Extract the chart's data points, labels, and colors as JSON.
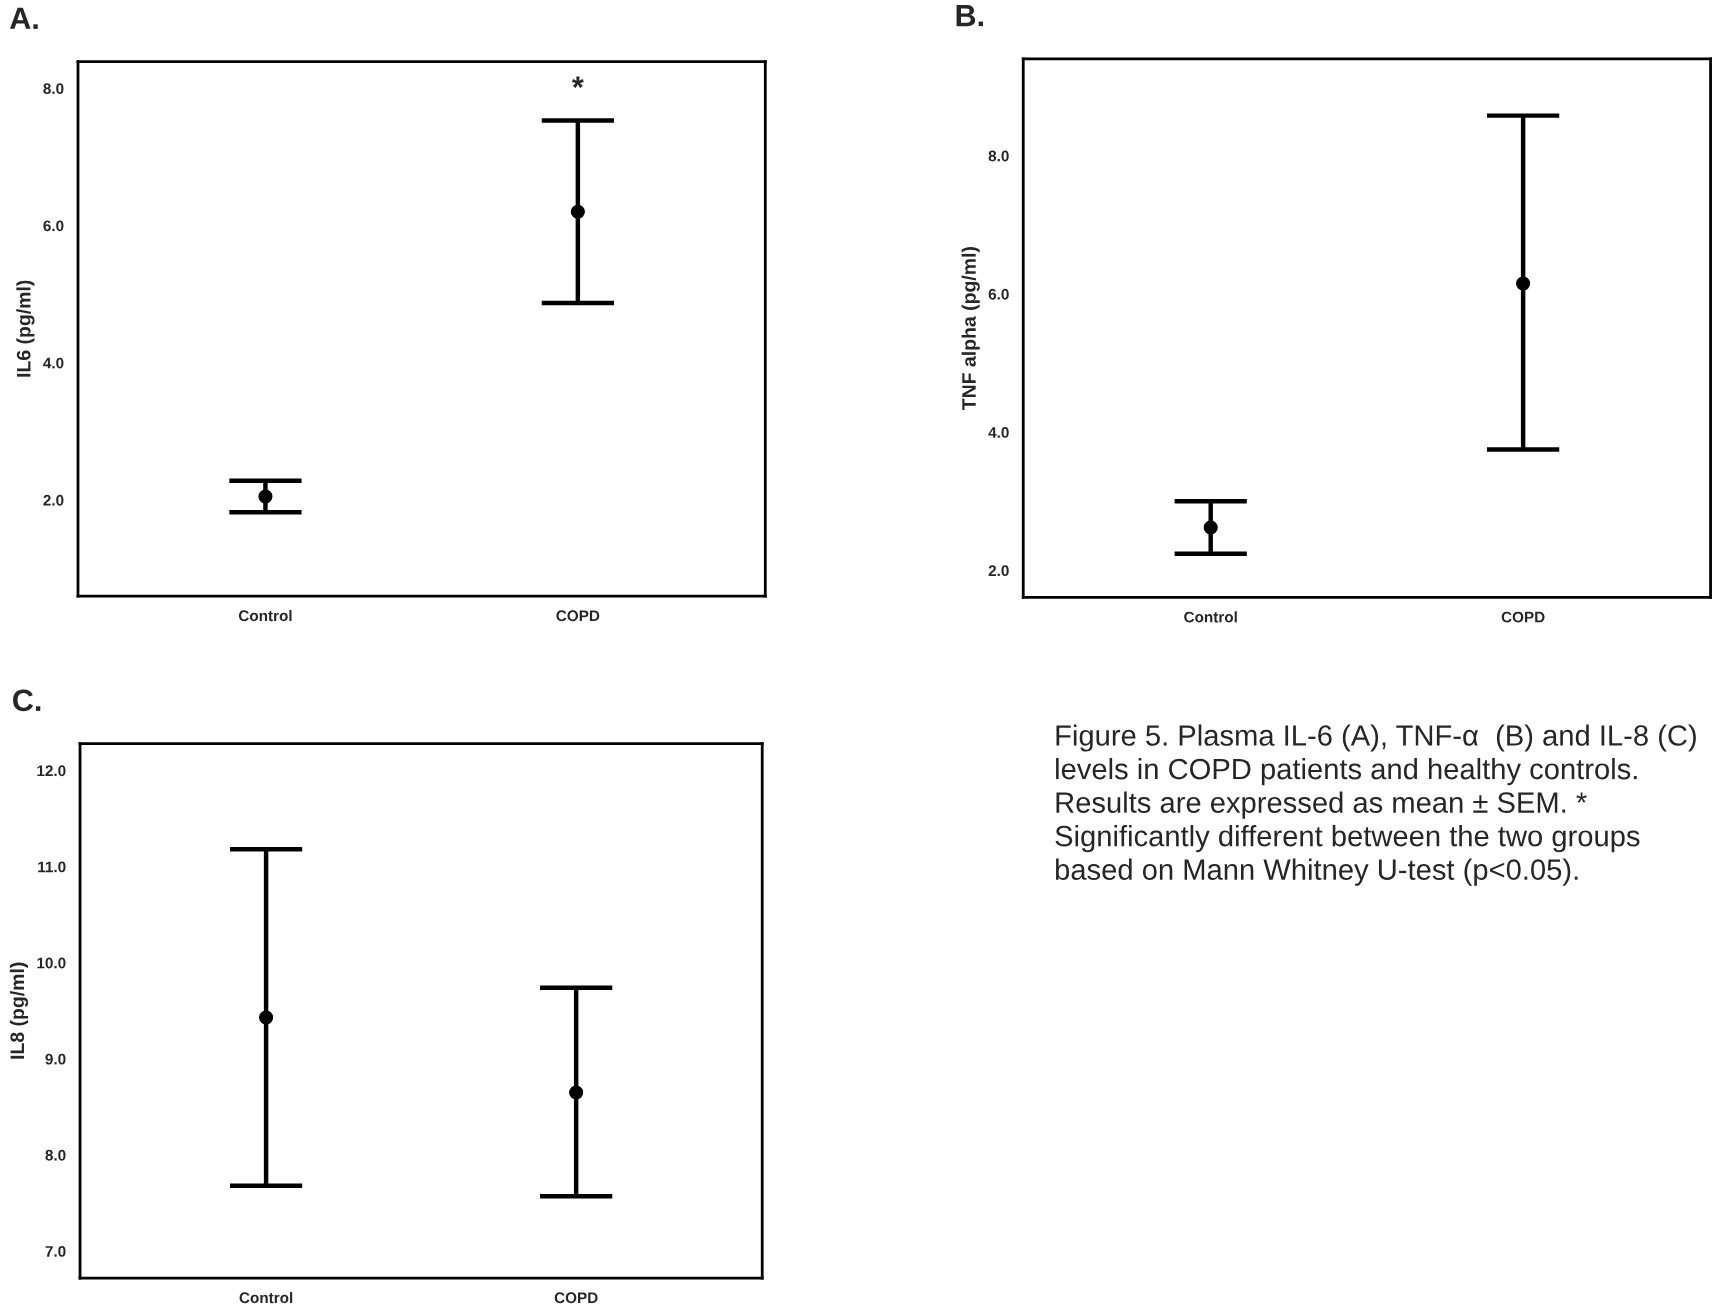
{
  "chart_data": [
    {
      "type": "scatter",
      "title": "A.",
      "ylabel": "IL6 (pg/ml)",
      "categories": [
        "Control",
        "COPD"
      ],
      "marker": "circle",
      "series": [
        {
          "color": "#000000",
          "values": [
            2.05,
            6.2
          ],
          "errors": [
            [
              1.82,
              2.28
            ],
            [
              4.87,
              7.53
            ]
          ]
        }
      ],
      "ylim": [
        0.6,
        8.39
      ],
      "yticks": [
        {
          "value": 2,
          "label": "2.0"
        },
        {
          "value": 4,
          "label": "4.0"
        },
        {
          "value": 6,
          "label": "6.0"
        },
        {
          "value": 8,
          "label": "8.0"
        }
      ],
      "grid": false,
      "annotations": [
        "*"
      ]
    },
    {
      "type": "scatter",
      "title": "B.",
      "ylabel": "TNF alpha (pg/ml)",
      "categories": [
        "Control",
        "COPD"
      ],
      "marker": "circle",
      "series": [
        {
          "color": "#000000",
          "values": [
            2.62,
            6.15
          ],
          "errors": [
            [
              2.24,
              3.0
            ],
            [
              3.75,
              8.58
            ]
          ]
        }
      ],
      "ylim": [
        1.61,
        9.4
      ],
      "yticks": [
        {
          "value": 2,
          "label": "2.0"
        },
        {
          "value": 4,
          "label": "4.0"
        },
        {
          "value": 6,
          "label": "6.0"
        },
        {
          "value": 8,
          "label": "8.0"
        }
      ],
      "grid": false
    },
    {
      "type": "scatter",
      "title": "C.",
      "ylabel": "IL8 (pg/ml)",
      "categories": [
        "Control",
        "COPD"
      ],
      "marker": "circle",
      "series": [
        {
          "color": "#000000",
          "values": [
            9.43,
            8.65
          ],
          "errors": [
            [
              7.68,
              11.18
            ],
            [
              7.57,
              9.74
            ]
          ]
        }
      ],
      "ylim": [
        6.72,
        12.28
      ],
      "yticks": [
        {
          "value": 7,
          "label": "7.0"
        },
        {
          "value": 8,
          "label": "8.0"
        },
        {
          "value": 9,
          "label": "9.0"
        },
        {
          "value": 10,
          "label": "10.0"
        },
        {
          "value": 11,
          "label": "11.0"
        },
        {
          "value": 12,
          "label": "12.0"
        }
      ],
      "grid": false
    },
    {
      "type": "other",
      "annotations": [
        "Figure 5. Plasma IL-6 (A), TNF-α  (B) and IL-8 (C) levels in COPD patients and healthy controls. Results are expressed as mean ± SEM. * Significantly different between the two groups based on Mann Whitney U-test (p<0.05)."
      ]
    }
  ]
}
